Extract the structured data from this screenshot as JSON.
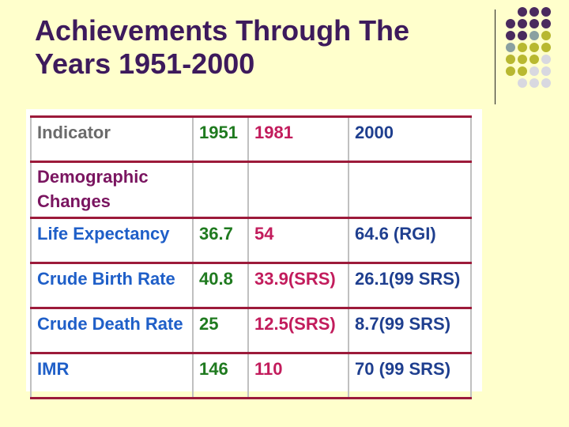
{
  "slide": {
    "title_line1": "Achievements Through The",
    "title_line2": "Years 1951-2000"
  },
  "table": {
    "headers": [
      "Indicator",
      "1951",
      "1981",
      "2000"
    ],
    "section": "Demographic Changes",
    "section_line1": "Demographic",
    "section_line2": "Changes",
    "rows": [
      {
        "indicator": "Life Expectancy",
        "y1951": "36.7",
        "y1981": "54",
        "y2000": "64.6 (RGI)"
      },
      {
        "indicator": "Crude Birth Rate",
        "y1951": "40.8",
        "y1981": "33.9(SRS)",
        "y2000": "26.1(99 SRS)"
      },
      {
        "indicator": "Crude Death Rate",
        "y1951": "25",
        "y1981": "12.5(SRS)",
        "y2000": "8.7(99 SRS)"
      },
      {
        "indicator": "IMR",
        "y1951": "146",
        "y1981": "110",
        "y2000": "70 (99 SRS)"
      }
    ]
  },
  "colors": {
    "background": "#ffffcc",
    "title": "#3d1a5c",
    "dot_purple": "#4a2a5e",
    "dot_olive": "#b8b830",
    "dot_teal": "#8aa0a0",
    "dot_grey": "#d8d8e0",
    "rule": "#9c1a3a"
  }
}
